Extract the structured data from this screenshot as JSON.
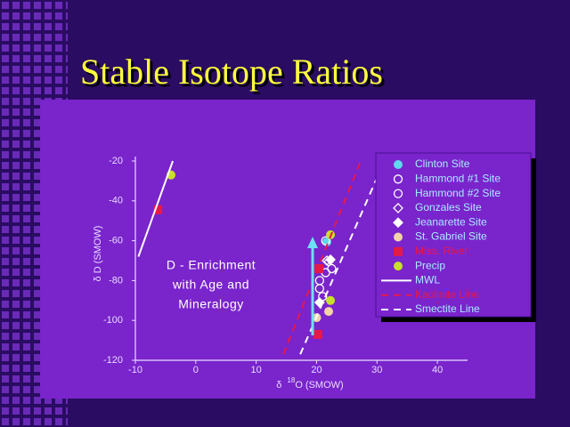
{
  "chart_data": {
    "type": "scatter",
    "title": "Stable Isotope Ratios",
    "y_label": "δ  D (SMOW)",
    "x_label": {
      "symbol": "δ",
      "sup": "18",
      "main": "O (SMOW)"
    },
    "annotation": [
      "D - Enrichment",
      "with Age and",
      "Mineralogy"
    ],
    "xlim": [
      -10,
      45
    ],
    "ylim": [
      -120,
      -20
    ],
    "xticks": [
      -10,
      0,
      10,
      20,
      30,
      40
    ],
    "yticks": [
      -120,
      -100,
      -80,
      -60,
      -40,
      -20
    ],
    "series": [
      {
        "name": "Clinton Site",
        "marker": "circle",
        "color": "#5fd8f0",
        "text_color": "#a8ecff",
        "x": [
          21.7
        ],
        "values": [
          -60.6
        ]
      },
      {
        "name": "Hammond #1 Site",
        "marker": "circle-open",
        "color": "#ffffff",
        "text_color": "#a8ecff",
        "x": [
          21.5,
          20.5,
          20.5,
          21.5
        ],
        "values": [
          -60,
          -80,
          -84,
          -76
        ]
      },
      {
        "name": "Hammond #2 Site",
        "marker": "circle-open",
        "color": "#ffffff",
        "text_color": "#a8ecff",
        "x": [
          22.5,
          21
        ],
        "values": [
          -74,
          -88
        ]
      },
      {
        "name": "Gonzales Site",
        "marker": "diamond-open",
        "color": "#ffffff",
        "text_color": "#a8ecff",
        "x": [
          21.7,
          22
        ],
        "values": [
          -70,
          -70.5
        ]
      },
      {
        "name": "Jeanarette Site",
        "marker": "diamond",
        "color": "#ffffff",
        "text_color": "#a8ecff",
        "x": [
          20.5,
          22.3
        ],
        "values": [
          -91,
          -69.5
        ]
      },
      {
        "name": "St. Gabriel Site",
        "marker": "circle",
        "color": "#f2d2a8",
        "text_color": "#a8ecff",
        "x": [
          20,
          22
        ],
        "values": [
          -98.6,
          -95.5
        ]
      },
      {
        "name": "Miss. River",
        "marker": "square",
        "color": "#e8184a",
        "text_color": "#e8184a",
        "x": [
          -6.3,
          20.4,
          20.2
        ],
        "values": [
          -44.5,
          -74,
          -107
        ]
      },
      {
        "name": "Precip",
        "marker": "circle",
        "color": "#c8e02a",
        "text_color": "#a8ecff",
        "x": [
          -4.1,
          22.3,
          22.3
        ],
        "values": [
          -27,
          -57,
          -90
        ]
      },
      {
        "name": "MWL",
        "marker": "line",
        "color": "#ffffff",
        "text_color": "#a8ecff",
        "x": [
          -9.5,
          -3.8
        ],
        "values": [
          -68,
          -20
        ]
      },
      {
        "name": "Kaolinite Line",
        "marker": "dashed",
        "color": "#e8184a",
        "text_color": "#e8184a",
        "x": [
          14.5,
          27.3
        ],
        "values": [
          -117,
          -20
        ]
      },
      {
        "name": "Smectite Line",
        "marker": "dashed",
        "color": "#ffffff",
        "text_color": "#a8ecff",
        "x": [
          17.3,
          31.2
        ],
        "values": [
          -117,
          -20
        ]
      }
    ]
  }
}
